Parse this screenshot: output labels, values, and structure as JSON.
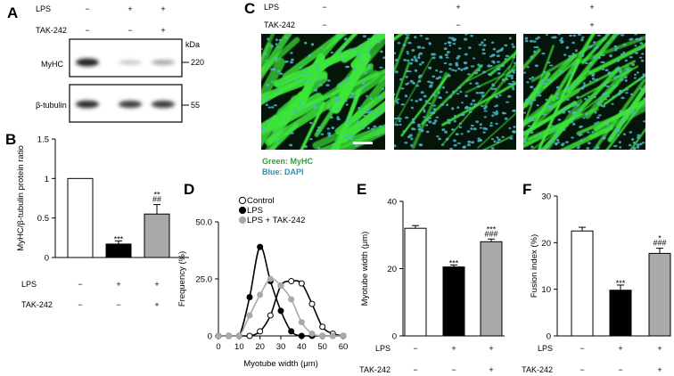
{
  "panel_a": {
    "letter": "A",
    "row_labels": [
      "LPS",
      "TAK-242"
    ],
    "lps": [
      "−",
      "+",
      "+"
    ],
    "tak": [
      "−",
      "−",
      "+"
    ],
    "kda_label": "kDa",
    "blots": [
      {
        "name": "MyHC",
        "marker": "220",
        "bands": [
          0.95,
          0.12,
          0.28
        ]
      },
      {
        "name": "β-tubulin",
        "marker": "55",
        "bands": [
          0.9,
          0.8,
          0.82
        ]
      }
    ]
  },
  "panel_c": {
    "letter": "C",
    "row_labels": [
      "LPS",
      "TAK-242"
    ],
    "lps": [
      "−",
      "+",
      "+"
    ],
    "tak": [
      "−",
      "−",
      "+"
    ],
    "legend_green": "Green: MyHC",
    "legend_blue": "Blue: DAPI",
    "colors": {
      "myhc": "#3ee63a",
      "dapi": "#4fb4c8",
      "background": "#06150a"
    }
  },
  "panel_d_legend": [
    "Control",
    "LPS",
    "LPS + TAK-242"
  ],
  "chart_data": [
    {
      "panel": "B",
      "type": "bar",
      "ylabel": "MyHC/β-tubulin protein ratio",
      "ylim": [
        0,
        1.5
      ],
      "yticks": [
        "0",
        "0.5",
        "1",
        "1.5"
      ],
      "lps": [
        "−",
        "+",
        "+"
      ],
      "tak": [
        "−",
        "−",
        "+"
      ],
      "row_labels": [
        "LPS",
        "TAK-242"
      ],
      "values": [
        1.0,
        0.17,
        0.55
      ],
      "errors": [
        0,
        0.04,
        0.12
      ],
      "fills": [
        "#ffffff",
        "#000000",
        "#a9a9a9"
      ],
      "annotations": [
        [
          ""
        ],
        [
          "***"
        ],
        [
          "**",
          "##"
        ]
      ]
    },
    {
      "panel": "D",
      "type": "line",
      "ylabel": "Frequency (%)",
      "xlabel": "Myotube width (μm)",
      "xlim": [
        0,
        60
      ],
      "ylim": [
        0,
        50
      ],
      "xticks": [
        "0",
        "10",
        "20",
        "30",
        "40",
        "50",
        "60"
      ],
      "yticks": [
        "0",
        "25.0",
        "50.0"
      ],
      "x": [
        0,
        5,
        10,
        15,
        20,
        25,
        30,
        35,
        40,
        45,
        50,
        55,
        60
      ],
      "series": [
        {
          "name": "Control",
          "values": [
            0,
            0,
            0,
            0,
            2,
            9,
            22,
            24,
            23,
            14,
            4,
            1,
            0
          ],
          "fill": "#ffffff"
        },
        {
          "name": "LPS",
          "values": [
            0,
            0,
            0,
            17,
            39,
            24,
            11,
            2,
            0,
            0,
            0,
            0,
            0
          ],
          "fill": "#000000"
        },
        {
          "name": "LPS + TAK-242",
          "values": [
            0,
            0,
            0,
            9,
            18,
            25,
            22,
            16,
            6,
            1,
            0,
            0,
            0
          ],
          "fill": "#a9a9a9"
        }
      ]
    },
    {
      "panel": "E",
      "type": "bar",
      "ylabel": "Myotube width (μm)",
      "ylim": [
        0,
        40
      ],
      "yticks": [
        "0",
        "20",
        "40"
      ],
      "lps": [
        "−",
        "+",
        "+"
      ],
      "tak": [
        "−",
        "−",
        "+"
      ],
      "row_labels": [
        "LPS",
        "TAK-242"
      ],
      "values": [
        32,
        20.5,
        28
      ],
      "errors": [
        0.8,
        0.6,
        0.8
      ],
      "fills": [
        "#ffffff",
        "#000000",
        "#a9a9a9"
      ],
      "annotations": [
        [
          ""
        ],
        [
          "***"
        ],
        [
          "***",
          "###"
        ]
      ]
    },
    {
      "panel": "F",
      "type": "bar",
      "ylabel": "Fusion index (%)",
      "ylim": [
        0,
        30
      ],
      "yticks": [
        "0",
        "10",
        "20",
        "30"
      ],
      "lps": [
        "−",
        "+",
        "+"
      ],
      "tak": [
        "−",
        "−",
        "+"
      ],
      "row_labels": [
        "LPS",
        "TAK-242"
      ],
      "values": [
        22.5,
        9.8,
        17.7
      ],
      "errors": [
        0.8,
        1.1,
        1.1
      ],
      "fills": [
        "#ffffff",
        "#000000",
        "#a9a9a9"
      ],
      "annotations": [
        [
          ""
        ],
        [
          "***"
        ],
        [
          "*",
          "###"
        ]
      ]
    }
  ]
}
